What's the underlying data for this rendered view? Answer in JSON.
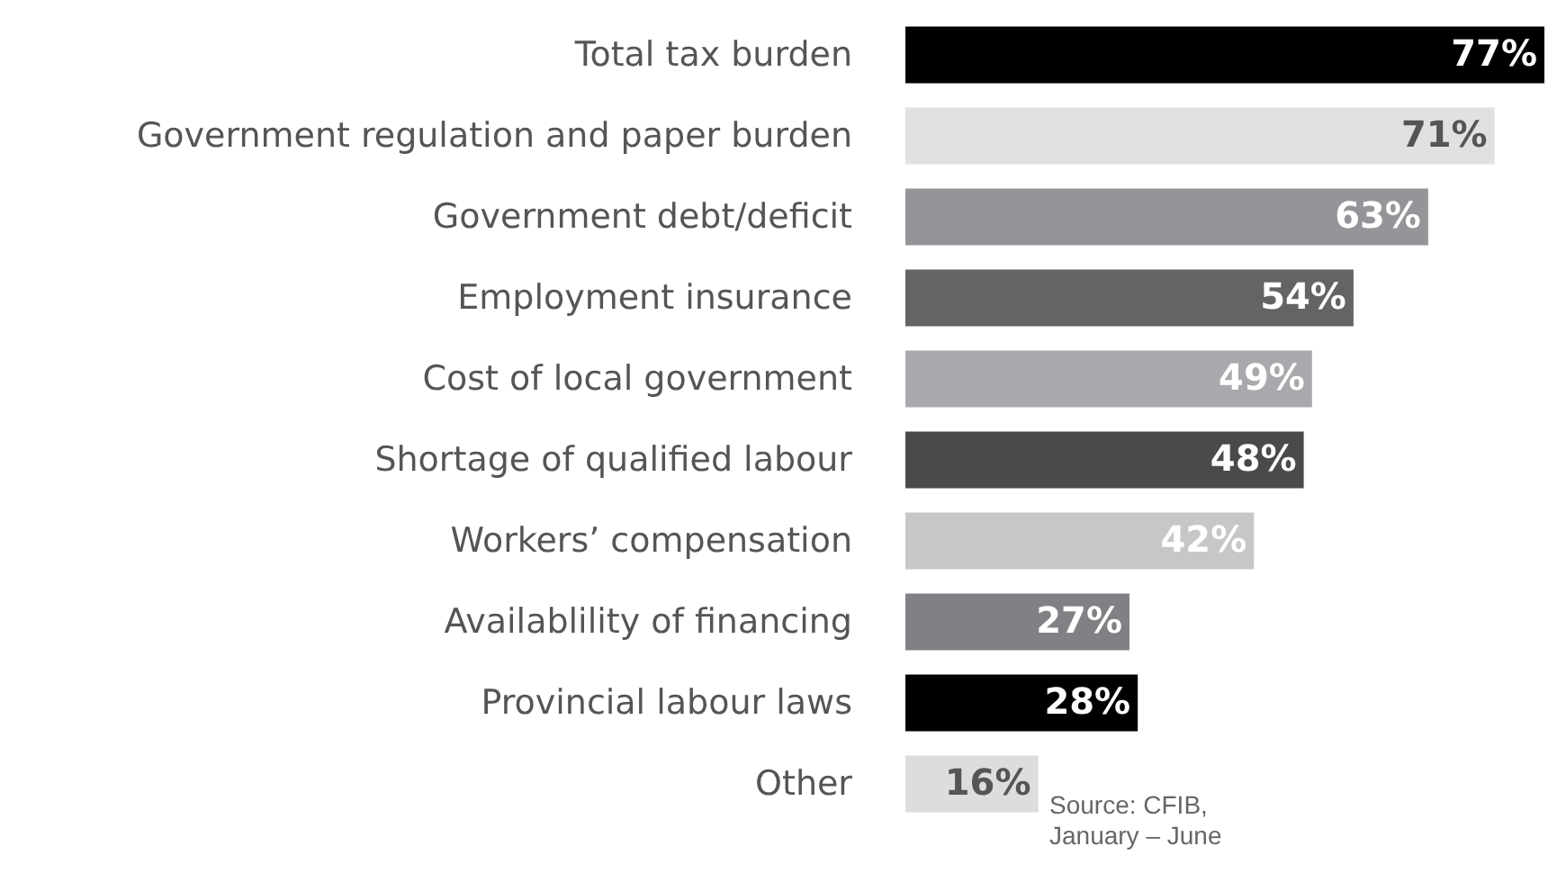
{
  "chart_data": {
    "type": "bar",
    "orientation": "horizontal",
    "categories": [
      "Total tax burden",
      "Government regulation and paper burden",
      "Government debt/deficit",
      "Employment insurance",
      "Cost of local government",
      "Shortage of qualified labour",
      "Workers’ compensation",
      "Availablility of financing",
      "Provincial labour laws",
      "Other"
    ],
    "values": [
      77,
      71,
      63,
      54,
      49,
      48,
      42,
      27,
      28,
      16
    ],
    "colors": [
      "#000000",
      "#e0e1e3",
      "#939598",
      "#636466",
      "#a7a9ac",
      "#4a4a4c",
      "#c6c7c9",
      "#808184",
      "#000000",
      "#dcdddf"
    ],
    "value_labels": [
      "77%",
      "71%",
      "63%",
      "54%",
      "49%",
      "48%",
      "42%",
      "27%",
      "28%",
      "16%"
    ],
    "annotations": [
      "Source: CFIB,",
      "January – June"
    ]
  }
}
